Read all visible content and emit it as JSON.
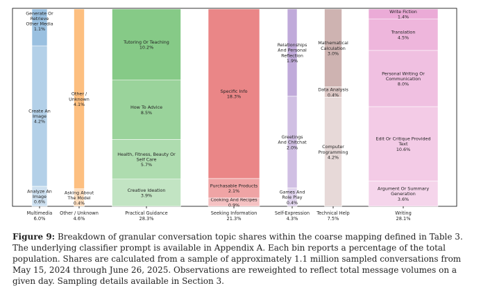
{
  "chart_data": {
    "type": "bar",
    "subtype": "stacked-mosaic",
    "value_unit": "% of total population",
    "grid": false,
    "columns": [
      {
        "label": "Multimedia",
        "total": "6.0%",
        "total_value": 6.0,
        "color": "#8fb9dd",
        "segments": [
          {
            "label": "Analyze An Image",
            "value": 0.6,
            "text": "0.6%"
          },
          {
            "label": "Create An Image",
            "value": 4.2,
            "text": "4.2%"
          },
          {
            "label": "Generate Or Retrieve Other Media",
            "value": 1.1,
            "text": "1.1%"
          }
        ]
      },
      {
        "label": "Other / Unknown",
        "total": "4.6%",
        "total_value": 4.6,
        "color": "#fdb872",
        "segments": [
          {
            "label": "Asking About The Model",
            "value": 0.4,
            "text": "0.4%"
          },
          {
            "label": "Other / Unknown",
            "value": 4.1,
            "text": "4.1%"
          }
        ]
      },
      {
        "label": "Practical Guidance",
        "total": "28.3%",
        "total_value": 28.3,
        "color": "#78c47a",
        "segments": [
          {
            "label": "Creative Ideation",
            "value": 3.9,
            "text": "3.9%"
          },
          {
            "label": "Health, Fitness, Beauty Or Self Care",
            "value": 5.7,
            "text": "5.7%"
          },
          {
            "label": "How To Advice",
            "value": 8.5,
            "text": "8.5%"
          },
          {
            "label": "Tutoring Or Teaching",
            "value": 10.2,
            "text": "10.2%"
          }
        ]
      },
      {
        "label": "Seeking Information",
        "total": "21.3%",
        "total_value": 21.3,
        "color": "#e8787a",
        "segments": [
          {
            "label": "Cooking And Recipes",
            "value": 0.9,
            "text": "0.9%"
          },
          {
            "label": "Purchasable Products",
            "value": 2.1,
            "text": "2.1%"
          },
          {
            "label": "Specific Info",
            "value": 18.3,
            "text": "18.3%"
          }
        ]
      },
      {
        "label": "Self-Expression",
        "total": "4.3%",
        "total_value": 4.3,
        "color": "#b9a0d6",
        "segments": [
          {
            "label": "Games And Role Play",
            "value": 0.4,
            "text": "0.4%"
          },
          {
            "label": "Greetings And Chitchat",
            "value": 2.0,
            "text": "2.0%"
          },
          {
            "label": "Relationships And Personal Reflection",
            "value": 1.9,
            "text": "1.9%"
          }
        ]
      },
      {
        "label": "Technical Help",
        "total": "7.5%",
        "total_value": 7.5,
        "color": "#c9aba8",
        "segments": [
          {
            "label": "Computer Programming",
            "value": 4.2,
            "text": "4.2%"
          },
          {
            "label": "Data Analysis",
            "value": 0.4,
            "text": "0.4%"
          },
          {
            "label": "Mathematical Calculation",
            "value": 3.0,
            "text": "3.0%"
          }
        ]
      },
      {
        "label": "Writing",
        "total": "28.1%",
        "total_value": 28.1,
        "color": "#e9a2d2",
        "segments": [
          {
            "label": "Argument Or Summary Generation",
            "value": 3.6,
            "text": "3.6%"
          },
          {
            "label": "Edit Or Critique Provided Text",
            "value": 10.6,
            "text": "10.6%"
          },
          {
            "label": "Personal Writing Or Communication",
            "value": 8.0,
            "text": "8.0%"
          },
          {
            "label": "Translation",
            "value": 4.5,
            "text": "4.5%"
          },
          {
            "label": "Write Fiction",
            "value": 1.4,
            "text": "1.4%"
          }
        ]
      }
    ]
  },
  "caption": {
    "label": "Figure 9:",
    "text": "Breakdown of granular conversation topic shares within the coarse mapping defined in Table 3. The underlying classifier prompt is available in Appendix A. Each bin reports a percentage of the total population. Shares are calculated from a sample of approximately 1.1 million sampled conversations from May 15, 2024 through June 26, 2025. Observations are reweighted to reflect total message volumes on a given day. Sampling details available in Section 3."
  }
}
